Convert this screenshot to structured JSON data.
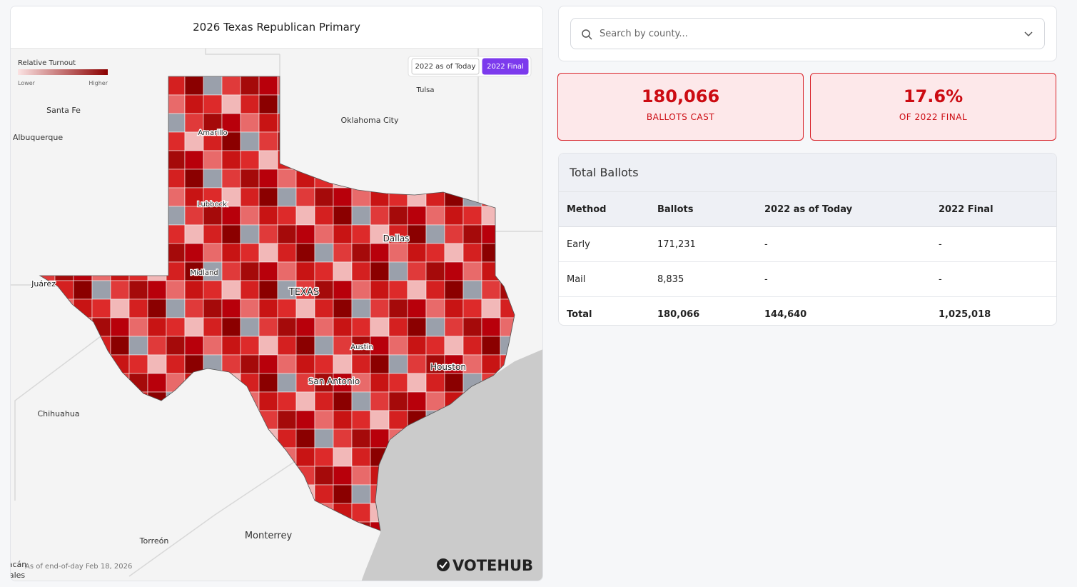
{
  "map_panel": {
    "title": "2026 Texas Republican Primary",
    "legend": {
      "title": "Relative Turnout",
      "low": "Lower",
      "high": "Higher"
    },
    "toggle": [
      "2022 as of Today",
      "2022 Final"
    ],
    "active_toggle": 1,
    "places": [
      "Santa Fe",
      "Albuquerque",
      "Amarillo",
      "Lubbock",
      "Midland",
      "Juárez",
      "TEXAS",
      "Dallas",
      "Austin",
      "San Antonio",
      "Houston",
      "Tulsa",
      "Oklahoma City",
      "Chihuahua",
      "Torreón",
      "Monterrey",
      "acán",
      "ales"
    ],
    "footnote": "As of end-of-day Feb 18, 2026",
    "logo": "VOTEHUB"
  },
  "search": {
    "placeholder": "Search by county..."
  },
  "stats": [
    {
      "value": "180,066",
      "label": "BALLOTS CAST"
    },
    {
      "value": "17.6%",
      "label": "OF 2022 FINAL"
    }
  ],
  "table": {
    "title": "Total Ballots",
    "header": [
      "Method",
      "Ballots",
      "2022 as of Today",
      "2022 Final"
    ],
    "rows": [
      [
        "Early",
        "171,231",
        "-",
        "-"
      ],
      [
        "Mail",
        "8,835",
        "-",
        "-"
      ],
      [
        "Total",
        "180,066",
        "144,640",
        "1,025,018"
      ]
    ]
  }
}
